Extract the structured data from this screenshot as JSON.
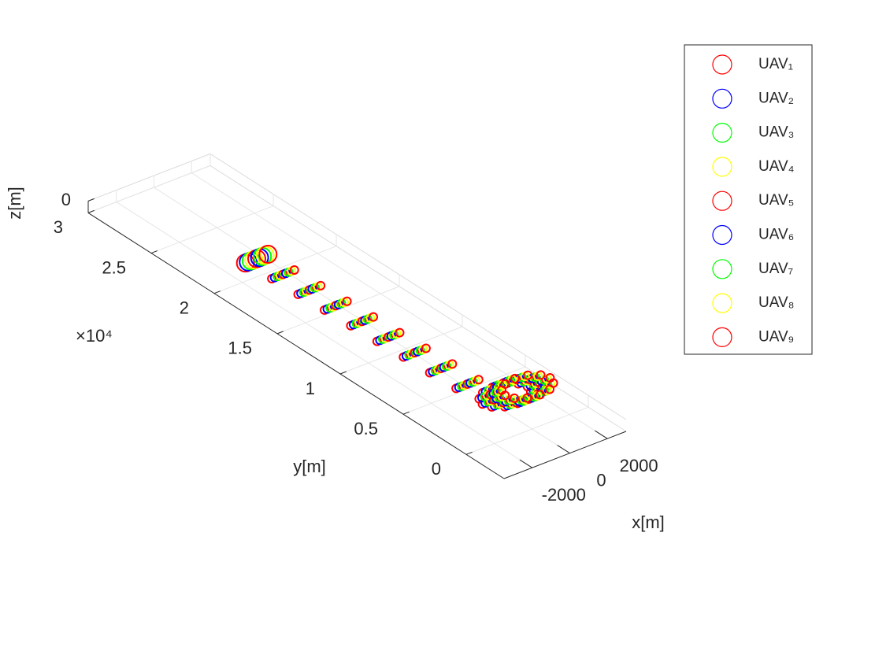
{
  "chart_data": {
    "type": "scatter3d",
    "x_label": "x[m]",
    "y_label": "y[m]",
    "z_label": "z[m]",
    "y_exponent_label": "×10⁴",
    "xlim": [
      -3500,
      3000
    ],
    "ylim": [
      -0.3,
      3
    ],
    "zlim": [
      -50,
      0
    ],
    "xticks": [
      -2000,
      0,
      2000
    ],
    "yticks": [
      0,
      0.5,
      1,
      1.5,
      2,
      2.5,
      3
    ],
    "zticks": [
      0
    ],
    "grid": true,
    "legend_location": "northeastoutside",
    "series": [
      {
        "name": "UAV₁",
        "color": "#ff0000",
        "x": [
          -1500,
          -1440,
          -1380,
          -1320,
          -1260,
          -1200,
          -1140,
          -1080,
          -1020,
          -960,
          -799,
          -360,
          240,
          840,
          1279,
          1440,
          1279,
          840,
          240,
          -360,
          -799
        ],
        "y": [
          2.05,
          1.85,
          1.65,
          1.45,
          1.25,
          1.05,
          0.85,
          0.65,
          0.45,
          0.25,
          0.2,
          0.163,
          0.15,
          0.163,
          0.2,
          0.25,
          0.3,
          0.337,
          0.35,
          0.337,
          0.3
        ]
      },
      {
        "name": "UAV₂",
        "color": "#0000ff",
        "x": [
          -1350,
          -1290,
          -1230,
          -1170,
          -1110,
          -1050,
          -990,
          -930,
          -870,
          -810,
          -649,
          -210,
          390,
          990,
          1429,
          1590,
          1429,
          990,
          390,
          -210,
          -649
        ],
        "y": [
          2.05,
          1.85,
          1.65,
          1.45,
          1.25,
          1.05,
          0.85,
          0.65,
          0.45,
          0.25,
          0.2,
          0.163,
          0.15,
          0.163,
          0.2,
          0.25,
          0.3,
          0.337,
          0.35,
          0.337,
          0.3
        ]
      },
      {
        "name": "UAV₃",
        "color": "#00ff00",
        "x": [
          -1200,
          -1140,
          -1080,
          -1020,
          -960,
          -900,
          -840,
          -780,
          -720,
          -660,
          -499,
          -60,
          540,
          1140,
          1579,
          1740,
          1579,
          1140,
          540,
          -60,
          -499
        ],
        "y": [
          2.05,
          1.85,
          1.65,
          1.45,
          1.25,
          1.05,
          0.85,
          0.65,
          0.45,
          0.25,
          0.2,
          0.163,
          0.15,
          0.163,
          0.2,
          0.25,
          0.3,
          0.337,
          0.35,
          0.337,
          0.3
        ]
      },
      {
        "name": "UAV₄",
        "color": "#ffff00",
        "x": [
          -1050,
          -990,
          -930,
          -870,
          -810,
          -750,
          -690,
          -630,
          -570,
          -510,
          -349,
          90,
          690,
          1290,
          1729,
          1890,
          1729,
          1290,
          690,
          90,
          -349
        ],
        "y": [
          2.05,
          1.85,
          1.65,
          1.45,
          1.25,
          1.05,
          0.85,
          0.65,
          0.45,
          0.25,
          0.2,
          0.163,
          0.15,
          0.163,
          0.2,
          0.25,
          0.3,
          0.337,
          0.35,
          0.337,
          0.3
        ]
      },
      {
        "name": "UAV₅",
        "color": "#ff0000",
        "x": [
          -900,
          -840,
          -780,
          -720,
          -660,
          -600,
          -540,
          -480,
          -420,
          -360,
          -199,
          240,
          840,
          1440,
          1879,
          2040,
          1879,
          1440,
          840,
          240,
          -199
        ],
        "y": [
          2.05,
          1.85,
          1.65,
          1.45,
          1.25,
          1.05,
          0.85,
          0.65,
          0.45,
          0.25,
          0.2,
          0.163,
          0.15,
          0.163,
          0.2,
          0.25,
          0.3,
          0.337,
          0.35,
          0.337,
          0.3
        ]
      },
      {
        "name": "UAV₆",
        "color": "#0000ff",
        "x": [
          -750,
          -690,
          -630,
          -570,
          -510,
          -450,
          -390,
          -330,
          -270,
          -210,
          -49,
          390,
          990,
          1590,
          2029,
          2190,
          2029,
          1590,
          990,
          390,
          -49
        ],
        "y": [
          2.05,
          1.85,
          1.65,
          1.45,
          1.25,
          1.05,
          0.85,
          0.65,
          0.45,
          0.25,
          0.2,
          0.163,
          0.15,
          0.163,
          0.2,
          0.25,
          0.3,
          0.337,
          0.35,
          0.337,
          0.3
        ]
      },
      {
        "name": "UAV₇",
        "color": "#00ff00",
        "x": [
          -600,
          -540,
          -480,
          -420,
          -360,
          -300,
          -240,
          -180,
          -120,
          -60,
          101,
          540,
          1140,
          1740,
          2179,
          2340,
          2179,
          1740,
          1140,
          540,
          101
        ],
        "y": [
          2.05,
          1.85,
          1.65,
          1.45,
          1.25,
          1.05,
          0.85,
          0.65,
          0.45,
          0.25,
          0.2,
          0.163,
          0.15,
          0.163,
          0.2,
          0.25,
          0.3,
          0.337,
          0.35,
          0.337,
          0.3
        ]
      },
      {
        "name": "UAV₈",
        "color": "#ffff00",
        "x": [
          -450,
          -390,
          -330,
          -270,
          -210,
          -150,
          -90,
          -30,
          30,
          90,
          251,
          690,
          1290,
          1890,
          2329,
          2490,
          2329,
          1890,
          1290,
          690,
          251
        ],
        "y": [
          2.05,
          1.85,
          1.65,
          1.45,
          1.25,
          1.05,
          0.85,
          0.65,
          0.45,
          0.25,
          0.2,
          0.163,
          0.15,
          0.163,
          0.2,
          0.25,
          0.3,
          0.337,
          0.35,
          0.337,
          0.3
        ]
      },
      {
        "name": "UAV₉",
        "color": "#ff0000",
        "x": [
          -300,
          -240,
          -180,
          -120,
          -60,
          0,
          60,
          120,
          180,
          240,
          401,
          840,
          1440,
          2040,
          2479,
          2640,
          2479,
          2040,
          1440,
          840,
          401
        ],
        "y": [
          2.05,
          1.85,
          1.65,
          1.45,
          1.25,
          1.05,
          0.85,
          0.65,
          0.45,
          0.25,
          0.2,
          0.163,
          0.15,
          0.163,
          0.2,
          0.25,
          0.3,
          0.337,
          0.35,
          0.337,
          0.3
        ]
      }
    ]
  }
}
